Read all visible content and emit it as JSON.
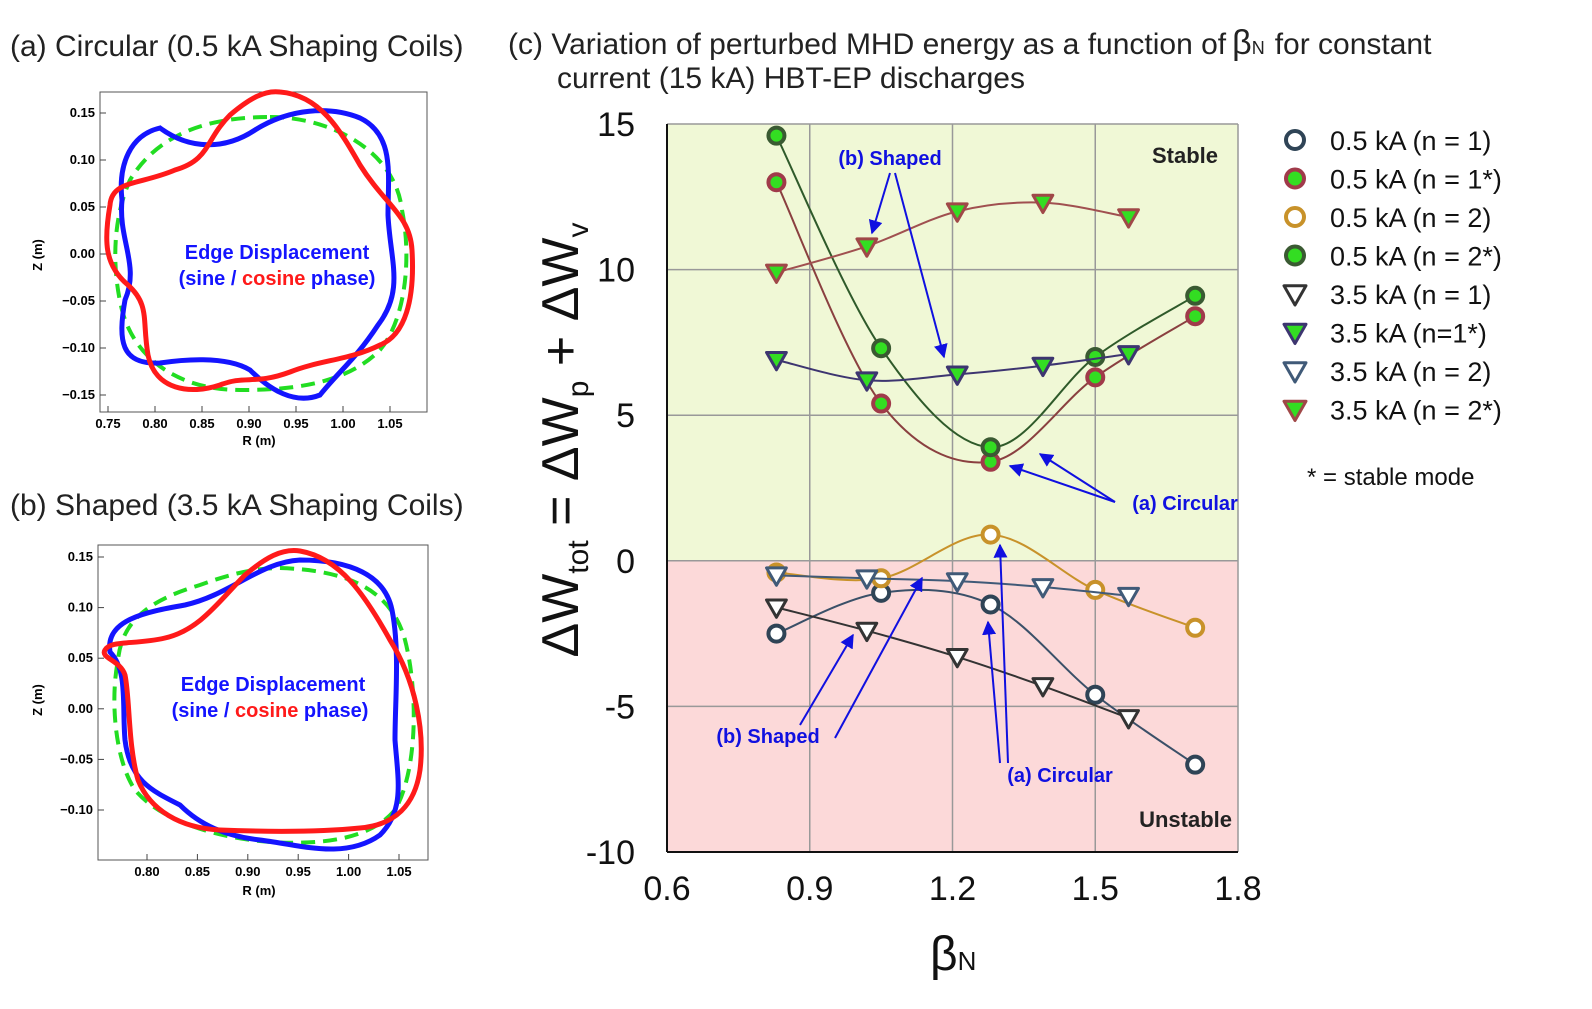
{
  "panel_a": {
    "title": "(a) Circular (0.5 kA Shaping Coils)",
    "annotation_line1": "Edge Displacement",
    "annotation_line2_pre": "(sine / ",
    "annotation_line2_cos": "cosine",
    "annotation_line2_post": " phase)",
    "xlabel": "R (m)",
    "ylabel": "Z (m)",
    "xticks": [
      "0.75",
      "0.80",
      "0.85",
      "0.90",
      "0.95",
      "1.00",
      "1.05"
    ],
    "yticks": [
      "0.15",
      "0.10",
      "0.05",
      "0.00",
      "−0.05",
      "−0.10",
      "−0.15"
    ],
    "colors": {
      "sine": "#1414ff",
      "cosine": "#ff1a1a",
      "equilibrium": "#22dd22"
    }
  },
  "panel_b": {
    "title": "(b) Shaped (3.5 kA Shaping Coils)",
    "annotation_line1": "Edge Displacement",
    "annotation_line2_pre": "(sine / ",
    "annotation_line2_cos": "cosine",
    "annotation_line2_post": " phase)",
    "xlabel": "R (m)",
    "ylabel": "Z (m)",
    "xticks": [
      "0.80",
      "0.85",
      "0.90",
      "0.95",
      "1.00",
      "1.05"
    ],
    "yticks": [
      "0.15",
      "0.10",
      "0.05",
      "0.00",
      "−0.05",
      "−0.10"
    ]
  },
  "panel_c": {
    "title_line1": "(c)  Variation of perturbed MHD energy as a function of",
    "title_beta": "β",
    "title_beta_sub": "N",
    "title_line1_end": "for constant",
    "title_line2": "current (15 kA) HBT-EP discharges",
    "ylabel_main": "ΔW",
    "ylabel_sub1": "tot",
    "ylabel_eq": " = ΔW",
    "ylabel_sub2": "p",
    "ylabel_plus": " + ΔW",
    "ylabel_sub3": "v",
    "xlabel": "β",
    "xlabel_sub": "N",
    "region_stable": "Stable",
    "region_unstable": "Unstable",
    "ann_shaped": "(b) Shaped",
    "ann_circular": "(a) Circular",
    "footnote": "* = stable mode",
    "colors": {
      "stable_bg": "#f0f8d6",
      "unstable_bg": "#fcd9d9",
      "annotation": "#1010e0"
    }
  },
  "chart_data": {
    "type": "line",
    "xlim": [
      0.6,
      1.8
    ],
    "ylim": [
      -10,
      15
    ],
    "x_ticks": [
      "0.6",
      "0.9",
      "1.2",
      "1.5",
      "1.8"
    ],
    "y_ticks": [
      "15",
      "10",
      "5",
      "0",
      "-5",
      "-10"
    ],
    "grid": true,
    "legend_position": "right",
    "series": [
      {
        "name": "0.5 kA (n = 1)",
        "marker": "circle",
        "edge": "#2f4456",
        "fill": "#ffffff",
        "line": "#3a5068",
        "x": [
          0.83,
          1.05,
          1.28,
          1.5,
          1.71
        ],
        "y": [
          -2.5,
          -1.1,
          -1.5,
          -4.6,
          -7.0
        ]
      },
      {
        "name": "0.5 kA (n = 1*)",
        "marker": "circle",
        "edge": "#a03a4a",
        "fill": "#33dd22",
        "line": "#8a4040",
        "x": [
          0.83,
          1.05,
          1.28,
          1.5,
          1.71
        ],
        "y": [
          13.0,
          5.4,
          3.4,
          6.3,
          8.4
        ]
      },
      {
        "name": "0.5 kA (n = 2)",
        "marker": "circle",
        "edge": "#c8922a",
        "fill": "#ffffff",
        "line": "#c8922a",
        "x": [
          0.83,
          1.05,
          1.28,
          1.5,
          1.71
        ],
        "y": [
          -0.4,
          -0.6,
          0.9,
          -1.0,
          -2.3
        ]
      },
      {
        "name": "0.5 kA (n = 2*)",
        "marker": "circle",
        "edge": "#3a5a32",
        "fill": "#33dd22",
        "line": "#2f5a2a",
        "x": [
          0.83,
          1.05,
          1.28,
          1.5,
          1.71
        ],
        "y": [
          14.6,
          7.3,
          3.9,
          7.0,
          9.1
        ]
      },
      {
        "name": "3.5 kA (n = 1)",
        "marker": "triangle",
        "edge": "#333333",
        "fill": "#ffffff",
        "line": "#333333",
        "x": [
          0.83,
          1.02,
          1.21,
          1.39,
          1.57
        ],
        "y": [
          -1.6,
          -2.4,
          -3.3,
          -4.3,
          -5.4
        ]
      },
      {
        "name": "3.5 kA (n=1*)",
        "marker": "triangle",
        "edge": "#3d3570",
        "fill": "#33dd22",
        "line": "#3d3570",
        "x": [
          0.83,
          1.02,
          1.21,
          1.39,
          1.57
        ],
        "y": [
          6.9,
          6.2,
          6.4,
          6.7,
          7.1
        ]
      },
      {
        "name": "3.5 kA (n = 2)",
        "marker": "triangle",
        "edge": "#405a78",
        "fill": "#ffffff",
        "line": "#405a78",
        "x": [
          0.83,
          1.02,
          1.21,
          1.39,
          1.57
        ],
        "y": [
          -0.5,
          -0.6,
          -0.7,
          -0.9,
          -1.2
        ]
      },
      {
        "name": "3.5 kA (n = 2*)",
        "marker": "triangle",
        "edge": "#a04848",
        "fill": "#33dd22",
        "line": "#a05050",
        "x": [
          0.83,
          1.02,
          1.21,
          1.39,
          1.57
        ],
        "y": [
          9.9,
          10.8,
          12.0,
          12.3,
          11.8
        ]
      }
    ]
  }
}
